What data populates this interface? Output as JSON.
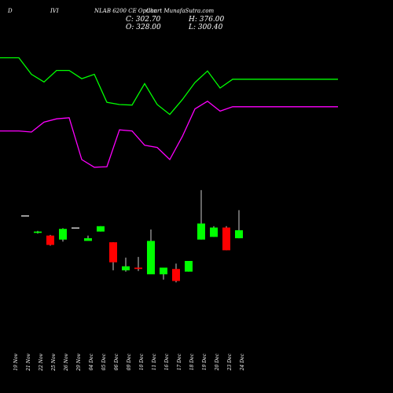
{
  "header": {
    "left_a": "D",
    "left_b": "IVI",
    "instrument": "NLAB 6200 CE Option",
    "site": "Chart MunafaSutra.com",
    "open_label": "O: 328.00",
    "close_label": "C: 302.70",
    "high_label": "H: 376.00",
    "low_label": "L: 300.40"
  },
  "chart_data": {
    "type": "candlestick",
    "background": "#000000",
    "up_color": "#00ff00",
    "down_color": "#ff0000",
    "wick_color": "#ffffff",
    "categories": [
      "19 Nov",
      "21 Nov",
      "22 Nov",
      "25 Nov",
      "26 Nov",
      "29 Nov",
      "04 Dec",
      "05 Dec",
      "06 Dec",
      "09 Dec",
      "10 Dec",
      "11 Dec",
      "16 Dec",
      "17 Dec",
      "18 Dec",
      "19 Dec",
      "20 Dec",
      "23 Dec",
      "24 Dec"
    ],
    "candle_slots": [
      1,
      2,
      3,
      4,
      5,
      6,
      7,
      8,
      9,
      10,
      11,
      12,
      13,
      14,
      15,
      16,
      17,
      18
    ],
    "candles": [
      {
        "o": 0.74,
        "c": 0.74,
        "h": 0.74,
        "l": 0.74
      },
      {
        "o": 0.61,
        "c": 0.62,
        "h": 0.625,
        "l": 0.605
      },
      {
        "o": 0.59,
        "c": 0.52,
        "h": 0.595,
        "l": 0.515
      },
      {
        "o": 0.56,
        "c": 0.64,
        "h": 0.645,
        "l": 0.545
      },
      {
        "o": 0.65,
        "c": 0.65,
        "h": 0.65,
        "l": 0.65
      },
      {
        "o": 0.55,
        "c": 0.57,
        "h": 0.59,
        "l": 0.55
      },
      {
        "o": 0.62,
        "c": 0.66,
        "h": 0.66,
        "l": 0.62
      },
      {
        "o": 0.54,
        "c": 0.39,
        "h": 0.54,
        "l": 0.33
      },
      {
        "o": 0.33,
        "c": 0.36,
        "h": 0.425,
        "l": 0.32
      },
      {
        "o": 0.35,
        "c": 0.34,
        "h": 0.43,
        "l": 0.325
      },
      {
        "o": 0.3,
        "c": 0.55,
        "h": 0.635,
        "l": 0.3
      },
      {
        "o": 0.3,
        "c": 0.35,
        "h": 0.35,
        "l": 0.26
      },
      {
        "o": 0.34,
        "c": 0.25,
        "h": 0.38,
        "l": 0.24
      },
      {
        "o": 0.32,
        "c": 0.4,
        "h": 0.4,
        "l": 0.32
      },
      {
        "o": 0.56,
        "c": 0.68,
        "h": 0.93,
        "l": 0.56
      },
      {
        "o": 0.58,
        "c": 0.65,
        "h": 0.66,
        "l": 0.58
      },
      {
        "o": 0.65,
        "c": 0.48,
        "h": 0.66,
        "l": 0.48
      },
      {
        "o": 0.57,
        "c": 0.63,
        "h": 0.78,
        "l": 0.57
      }
    ],
    "series": [
      {
        "color": "#00ff00",
        "values": [
          0.975,
          0.975,
          0.825,
          0.755,
          0.86,
          0.86,
          0.785,
          0.825,
          0.57,
          0.55,
          0.545,
          0.74,
          0.55,
          0.46,
          0.595,
          0.75,
          0.855,
          0.7,
          0.78
        ]
      },
      {
        "color": "#ff00ff",
        "values": [
          0.31,
          0.31,
          0.3,
          0.39,
          0.42,
          0.43,
          0.05,
          -0.02,
          -0.015,
          0.32,
          0.31,
          0.18,
          0.16,
          0.05,
          0.26,
          0.51,
          0.58,
          0.49,
          0.53
        ]
      }
    ],
    "grid": false,
    "legend": false
  }
}
